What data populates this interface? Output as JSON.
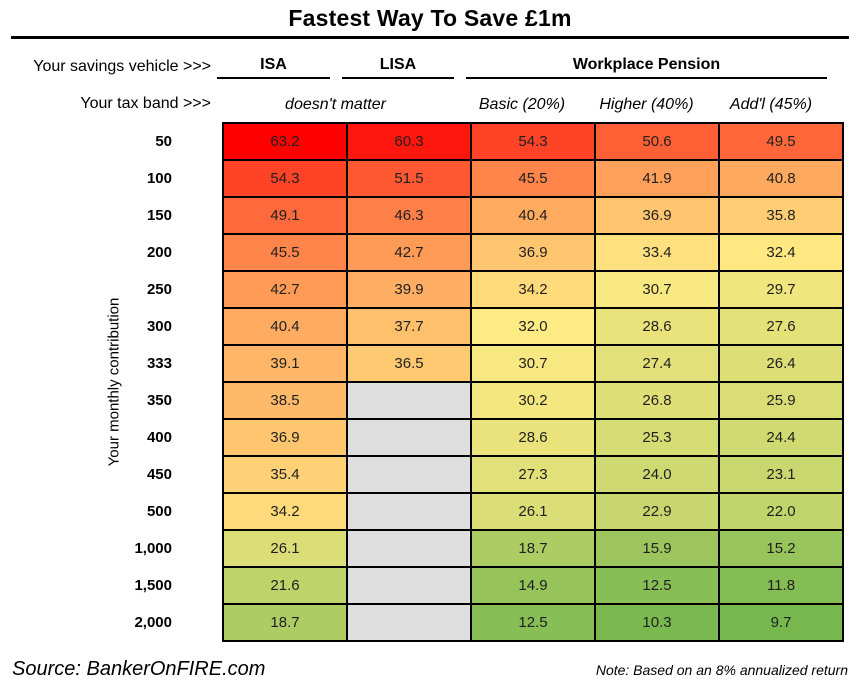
{
  "title": "Fastest Way To Save £1m",
  "header": {
    "vehicle_label": "Your savings vehicle >>>",
    "tax_label": "Your tax band >>>",
    "vehicles": [
      "ISA",
      "LISA",
      "Workplace Pension"
    ],
    "tax_bands": [
      "doesn't matter",
      "Basic (20%)",
      "Higher (40%)",
      "Add'l (45%)"
    ]
  },
  "y_axis_label": "Your monthly contribution",
  "footer": {
    "source": "Source: BankerOnFIRE.com",
    "note": "Note: Based on an 8% annualized return"
  },
  "chart_data": {
    "type": "heatmap",
    "title": "Fastest Way To Save £1m",
    "ylabel": "Your monthly contribution",
    "columns": [
      "ISA",
      "LISA",
      "Workplace Pension Basic (20%)",
      "Workplace Pension Higher (40%)",
      "Workplace Pension Add'l (45%)"
    ],
    "rows": [
      "50",
      "100",
      "150",
      "200",
      "250",
      "300",
      "333",
      "350",
      "400",
      "450",
      "500",
      "1,000",
      "1,500",
      "2,000"
    ],
    "values": [
      [
        63.2,
        60.3,
        54.3,
        50.6,
        49.5
      ],
      [
        54.3,
        51.5,
        45.5,
        41.9,
        40.8
      ],
      [
        49.1,
        46.3,
        40.4,
        36.9,
        35.8
      ],
      [
        45.5,
        42.7,
        36.9,
        33.4,
        32.4
      ],
      [
        42.7,
        39.9,
        34.2,
        30.7,
        29.7
      ],
      [
        40.4,
        37.7,
        32.0,
        28.6,
        27.6
      ],
      [
        39.1,
        36.5,
        30.7,
        27.4,
        26.4
      ],
      [
        38.5,
        null,
        30.2,
        26.8,
        25.9
      ],
      [
        36.9,
        null,
        28.6,
        25.3,
        24.4
      ],
      [
        35.4,
        null,
        27.3,
        24.0,
        23.1
      ],
      [
        34.2,
        null,
        26.1,
        22.9,
        22.0
      ],
      [
        26.1,
        null,
        18.7,
        15.9,
        15.2
      ],
      [
        21.6,
        null,
        14.9,
        12.5,
        11.8
      ],
      [
        18.7,
        null,
        12.5,
        10.3,
        9.7
      ]
    ],
    "color_scale": {
      "min_color": "#76B84E",
      "mid_color": "#FFEB84",
      "max_color": "#FF0000",
      "empty_color": "#DEDEDE",
      "midpoint": "median"
    }
  }
}
